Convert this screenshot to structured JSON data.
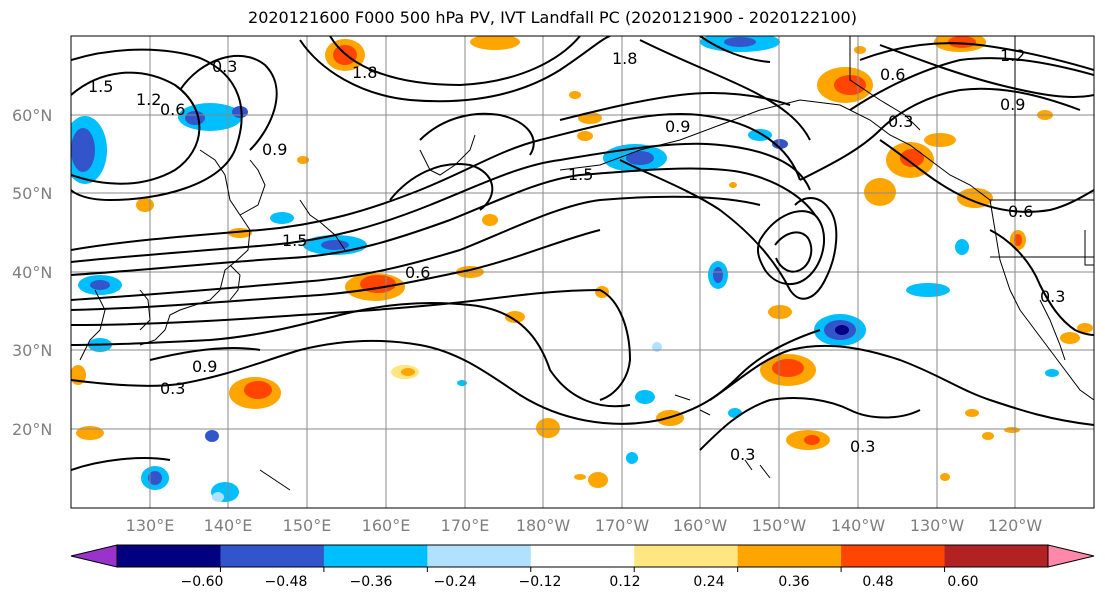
{
  "title": "2020121600 F000 500 hPa PV, IVT Landfall PC (2020121900 - 2020122100)",
  "lat_labels": [
    "60°N",
    "50°N",
    "40°N",
    "30°N",
    "20°N"
  ],
  "lon_labels": [
    "130°E",
    "140°E",
    "150°E",
    "160°E",
    "170°E",
    "180°W",
    "170°W",
    "160°W",
    "150°W",
    "140°W",
    "130°W",
    "120°W"
  ],
  "colorbar": {
    "tick_labels": [
      "−0.60",
      "−0.48",
      "−0.36",
      "−0.24",
      "−0.12",
      "0.12",
      "0.24",
      "0.36",
      "0.48",
      "0.60"
    ],
    "colors": [
      "#9933cc",
      "#000080",
      "#3355cc",
      "#00bfff",
      "#b0e2ff",
      "#ffffff",
      "#ffe680",
      "#ffa500",
      "#ff4500",
      "#b22222",
      "#ff88aa"
    ]
  },
  "contour_labels": [
    "0.3",
    "0.6",
    "0.9",
    "1.2",
    "1.5",
    "1.8",
    "0.3",
    "0.6",
    "0.9",
    "1.5",
    "1.8",
    "0.3",
    "0.6",
    "0.9",
    "1.2",
    "1.5",
    "0.3",
    "0.9",
    "0.6",
    "0.3",
    "0.3"
  ]
}
